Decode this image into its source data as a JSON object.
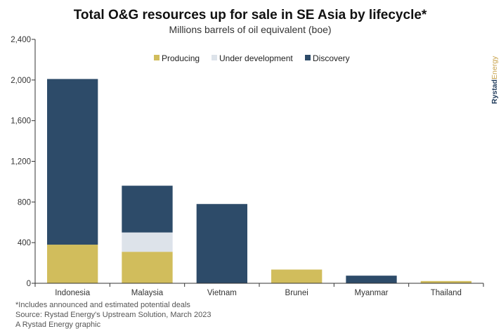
{
  "chart_data": {
    "type": "bar",
    "stacked": true,
    "title": "Total O&G resources up for sale in SE Asia by lifecycle*",
    "subtitle": "Millions barrels of oil equivalent (boe)",
    "categories": [
      "Indonesia",
      "Malaysia",
      "Vietnam",
      "Brunei",
      "Myanmar",
      "Thailand"
    ],
    "series": [
      {
        "name": "Producing",
        "color": "#d1bd5c",
        "values": [
          380,
          310,
          0,
          135,
          0,
          22
        ]
      },
      {
        "name": "Under development",
        "color": "#dde3ea",
        "values": [
          0,
          190,
          0,
          0,
          0,
          0
        ]
      },
      {
        "name": "Discovery",
        "color": "#2d4b69",
        "values": [
          1630,
          460,
          780,
          0,
          75,
          0
        ]
      }
    ],
    "ylim": [
      0,
      2400
    ],
    "yticks": [
      0,
      400,
      800,
      1200,
      1600,
      2000,
      2400
    ],
    "ytick_labels": [
      "0",
      "400",
      "800",
      "1,200",
      "1,600",
      "2,000",
      "2,400"
    ],
    "legend_position": "top-center",
    "grid": false
  },
  "footnotes": [
    "*Includes announced and estimated potential deals",
    "Source: Rystad Energy's Upstream Solution, March 2023",
    "A Rystad Energy graphic"
  ],
  "brand": {
    "part1": "Rystad",
    "part2": "Energy"
  }
}
